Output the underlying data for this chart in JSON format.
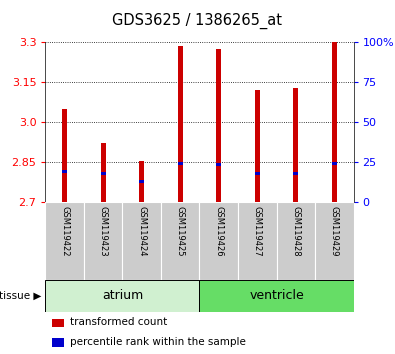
{
  "title": "GDS3625 / 1386265_at",
  "samples": [
    "GSM119422",
    "GSM119423",
    "GSM119424",
    "GSM119425",
    "GSM119426",
    "GSM119427",
    "GSM119428",
    "GSM119429"
  ],
  "red_values": [
    3.05,
    2.92,
    2.855,
    3.285,
    3.275,
    3.12,
    3.13,
    3.3
  ],
  "blue_values": [
    2.815,
    2.808,
    2.775,
    2.843,
    2.842,
    2.808,
    2.808,
    2.843
  ],
  "ymin": 2.7,
  "ymax": 3.3,
  "yticks_left": [
    2.7,
    2.85,
    3.0,
    3.15,
    3.3
  ],
  "yticks_right_labels": [
    "0",
    "25",
    "50",
    "75",
    "100%"
  ],
  "groups": [
    {
      "label": "atrium",
      "start": 0,
      "end": 3,
      "color": "#d0f0d0"
    },
    {
      "label": "ventricle",
      "start": 4,
      "end": 7,
      "color": "#66dd66"
    }
  ],
  "bar_width": 0.12,
  "red_color": "#cc0000",
  "blue_color": "#0000cc",
  "left_tick_color": "red",
  "right_tick_color": "blue",
  "grid_color": "#888888",
  "bg_color": "#ffffff",
  "label_area_color": "#cccccc"
}
